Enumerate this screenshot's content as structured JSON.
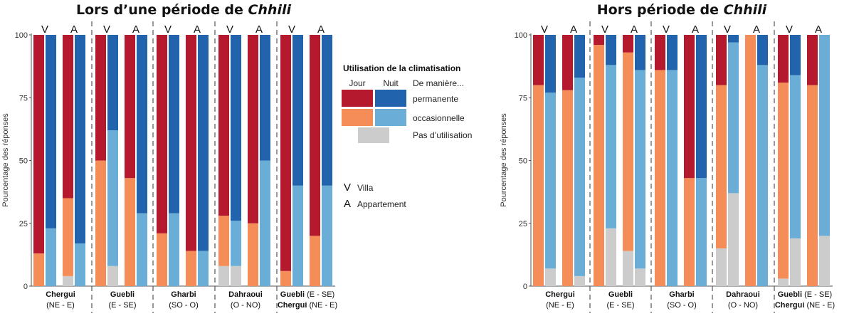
{
  "colors": {
    "day_perm": "#b5192d",
    "night_perm": "#2263ad",
    "day_occ": "#f58d59",
    "night_occ": "#6aadd6",
    "none": "#cccccc"
  },
  "legend": {
    "title": "Utilisation de la climatisation",
    "jour": "Jour",
    "nuit": "Nuit",
    "header": "De manière...",
    "permanente": "permanente",
    "occasionnelle": "occasionnelle",
    "pas": "Pas d’utilisation",
    "v_symbol": "V",
    "v_text": "Villa",
    "a_symbol": "A",
    "a_text": "Appartement"
  },
  "chart_data": [
    {
      "type": "bar",
      "title_prefix": "Lors d’une période de ",
      "title_emph": "Chhili",
      "ylabel": "Pourcentage des réponses",
      "ylim": [
        0,
        100
      ],
      "yticks": [
        0,
        25,
        50,
        75,
        100
      ],
      "groups": [
        {
          "name": "Chergui",
          "sub": "(NE - E)"
        },
        {
          "name": "Guebli",
          "sub": "(E - SE)"
        },
        {
          "name": "Gharbi",
          "sub": "(SO - O)"
        },
        {
          "name": "Dahraoui",
          "sub": "(O - NO)"
        },
        {
          "name": "Guebli",
          "sub": "(E - SE)",
          "name2": "Chergui",
          "sub2": "(NE - E)"
        }
      ],
      "housing_labels": [
        "V",
        "A"
      ],
      "series_order": [
        "none",
        "occasionnelle",
        "permanente"
      ],
      "bars": [
        [
          {
            "housing": "V",
            "jour": {
              "none": 0,
              "occasionnelle": 13,
              "permanente": 87
            },
            "nuit": {
              "none": 0,
              "occasionnelle": 23,
              "permanente": 77
            }
          },
          {
            "housing": "A",
            "jour": {
              "none": 4,
              "occasionnelle": 31,
              "permanente": 65
            },
            "nuit": {
              "none": 0,
              "occasionnelle": 17,
              "permanente": 83
            }
          }
        ],
        [
          {
            "housing": "V",
            "jour": {
              "none": 0,
              "occasionnelle": 50,
              "permanente": 50
            },
            "nuit": {
              "none": 8,
              "occasionnelle": 54,
              "permanente": 38
            }
          },
          {
            "housing": "A",
            "jour": {
              "none": 0,
              "occasionnelle": 43,
              "permanente": 57
            },
            "nuit": {
              "none": 0,
              "occasionnelle": 29,
              "permanente": 71
            }
          }
        ],
        [
          {
            "housing": "V",
            "jour": {
              "none": 0,
              "occasionnelle": 21,
              "permanente": 79
            },
            "nuit": {
              "none": 0,
              "occasionnelle": 29,
              "permanente": 71
            }
          },
          {
            "housing": "A",
            "jour": {
              "none": 0,
              "occasionnelle": 14,
              "permanente": 86
            },
            "nuit": {
              "none": 0,
              "occasionnelle": 14,
              "permanente": 86
            }
          }
        ],
        [
          {
            "housing": "V",
            "jour": {
              "none": 8,
              "occasionnelle": 20,
              "permanente": 72
            },
            "nuit": {
              "none": 8,
              "occasionnelle": 18,
              "permanente": 74
            }
          },
          {
            "housing": "A",
            "jour": {
              "none": 0,
              "occasionnelle": 25,
              "permanente": 75
            },
            "nuit": {
              "none": 0,
              "occasionnelle": 50,
              "permanente": 50
            }
          }
        ],
        [
          {
            "housing": "V",
            "jour": {
              "none": 0,
              "occasionnelle": 6,
              "permanente": 94
            },
            "nuit": {
              "none": 0,
              "occasionnelle": 40,
              "permanente": 60
            }
          },
          {
            "housing": "A",
            "jour": {
              "none": 0,
              "occasionnelle": 20,
              "permanente": 80
            },
            "nuit": {
              "none": 0,
              "occasionnelle": 40,
              "permanente": 60
            }
          }
        ]
      ]
    },
    {
      "type": "bar",
      "title_prefix": "Hors période de ",
      "title_emph": "Chhili",
      "ylabel": "Pourcentage des réponses",
      "ylim": [
        0,
        100
      ],
      "yticks": [
        0,
        25,
        50,
        75,
        100
      ],
      "groups": [
        {
          "name": "Chergui",
          "sub": "(NE - E)"
        },
        {
          "name": "Guebli",
          "sub": "(E - SE)"
        },
        {
          "name": "Gharbi",
          "sub": "(SO - O)"
        },
        {
          "name": "Dahraoui",
          "sub": "(O - NO)"
        },
        {
          "name": "Guebli",
          "sub": "(E - SE)",
          "name2": "Chergui",
          "sub2": "(NE - E)"
        }
      ],
      "housing_labels": [
        "V",
        "A"
      ],
      "series_order": [
        "none",
        "occasionnelle",
        "permanente"
      ],
      "bars": [
        [
          {
            "housing": "V",
            "jour": {
              "none": 0,
              "occasionnelle": 80,
              "permanente": 20
            },
            "nuit": {
              "none": 7,
              "occasionnelle": 70,
              "permanente": 23
            }
          },
          {
            "housing": "A",
            "jour": {
              "none": 0,
              "occasionnelle": 78,
              "permanente": 22
            },
            "nuit": {
              "none": 4,
              "occasionnelle": 79,
              "permanente": 17
            }
          }
        ],
        [
          {
            "housing": "V",
            "jour": {
              "none": 0,
              "occasionnelle": 96,
              "permanente": 4
            },
            "nuit": {
              "none": 23,
              "occasionnelle": 65,
              "permanente": 12
            }
          },
          {
            "housing": "A",
            "jour": {
              "none": 14,
              "occasionnelle": 79,
              "permanente": 7
            },
            "nuit": {
              "none": 7,
              "occasionnelle": 79,
              "permanente": 14
            }
          }
        ],
        [
          {
            "housing": "V",
            "jour": {
              "none": 0,
              "occasionnelle": 86,
              "permanente": 14
            },
            "nuit": {
              "none": 0,
              "occasionnelle": 86,
              "permanente": 14
            }
          },
          {
            "housing": "A",
            "jour": {
              "none": 0,
              "occasionnelle": 43,
              "permanente": 57
            },
            "nuit": {
              "none": 0,
              "occasionnelle": 43,
              "permanente": 57
            }
          }
        ],
        [
          {
            "housing": "V",
            "jour": {
              "none": 15,
              "occasionnelle": 65,
              "permanente": 20
            },
            "nuit": {
              "none": 37,
              "occasionnelle": 60,
              "permanente": 3
            }
          },
          {
            "housing": "A",
            "jour": {
              "none": 0,
              "occasionnelle": 100,
              "permanente": 0
            },
            "nuit": {
              "none": 0,
              "occasionnelle": 88,
              "permanente": 12
            }
          }
        ],
        [
          {
            "housing": "V",
            "jour": {
              "none": 3,
              "occasionnelle": 78,
              "permanente": 19
            },
            "nuit": {
              "none": 19,
              "occasionnelle": 65,
              "permanente": 16
            }
          },
          {
            "housing": "A",
            "jour": {
              "none": 0,
              "occasionnelle": 80,
              "permanente": 20
            },
            "nuit": {
              "none": 20,
              "occasionnelle": 80,
              "permanente": 0
            }
          }
        ]
      ]
    }
  ]
}
